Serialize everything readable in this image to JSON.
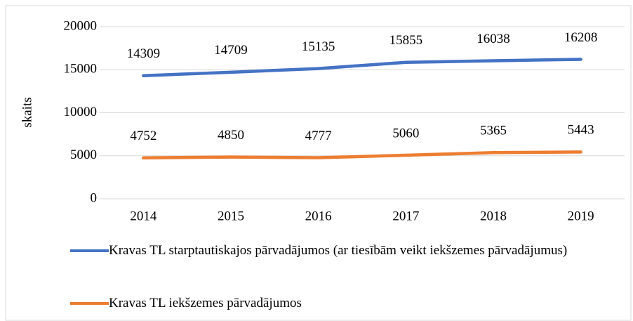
{
  "chart_data": {
    "type": "line",
    "y_label": "skaits",
    "categories": [
      "2014",
      "2015",
      "2016",
      "2017",
      "2018",
      "2019"
    ],
    "series": [
      {
        "name": "Kravas TL starptautiskajos pārvadājumos (ar tiesībām veikt iekšzemes pārvadājumus)",
        "color": "#4472c4",
        "values": [
          14309,
          14709,
          15135,
          15855,
          16038,
          16208
        ]
      },
      {
        "name": "Kravas TL iekšzemes pārvadājumos",
        "color": "#ed7d31",
        "values": [
          4752,
          4850,
          4777,
          5060,
          5365,
          5443
        ]
      }
    ],
    "ylim": [
      0,
      20000
    ],
    "yticks": [
      0,
      5000,
      10000,
      15000,
      20000
    ],
    "grid": true,
    "legend": "bottom"
  }
}
